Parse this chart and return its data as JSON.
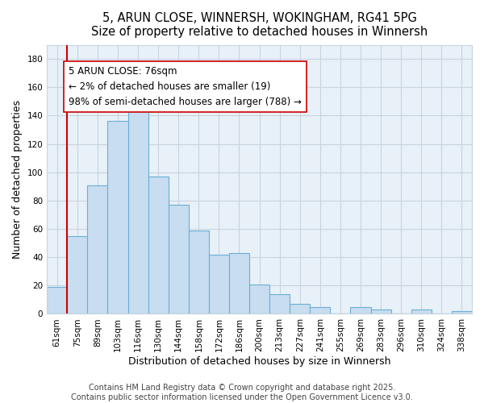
{
  "title": "5, ARUN CLOSE, WINNERSH, WOKINGHAM, RG41 5PG",
  "subtitle": "Size of property relative to detached houses in Winnersh",
  "xlabel": "Distribution of detached houses by size in Winnersh",
  "ylabel": "Number of detached properties",
  "bar_labels": [
    "61sqm",
    "75sqm",
    "89sqm",
    "103sqm",
    "116sqm",
    "130sqm",
    "144sqm",
    "158sqm",
    "172sqm",
    "186sqm",
    "200sqm",
    "213sqm",
    "227sqm",
    "241sqm",
    "255sqm",
    "269sqm",
    "283sqm",
    "296sqm",
    "310sqm",
    "324sqm",
    "338sqm"
  ],
  "bar_values": [
    19,
    55,
    91,
    136,
    143,
    97,
    77,
    59,
    42,
    43,
    21,
    14,
    7,
    5,
    0,
    5,
    3,
    0,
    3,
    0,
    2
  ],
  "bar_color": "#c8ddf0",
  "bar_edge_color": "#6aafd6",
  "vline_x_idx": 1,
  "vline_color": "#cc0000",
  "annotation_text": "5 ARUN CLOSE: 76sqm\n← 2% of detached houses are smaller (19)\n98% of semi-detached houses are larger (788) →",
  "annotation_box_color": "#ffffff",
  "annotation_box_edge": "#cc0000",
  "ylim": [
    0,
    190
  ],
  "yticks": [
    0,
    20,
    40,
    60,
    80,
    100,
    120,
    140,
    160,
    180
  ],
  "footer_line1": "Contains HM Land Registry data © Crown copyright and database right 2025.",
  "footer_line2": "Contains public sector information licensed under the Open Government Licence v3.0.",
  "figure_bg": "#ffffff",
  "plot_bg": "#e8f0f8",
  "grid_color": "#c8d4e0",
  "title_fontsize": 10.5,
  "xlabel_fontsize": 9,
  "ylabel_fontsize": 9,
  "footer_fontsize": 7,
  "annotation_fontsize": 8.5,
  "tick_fontsize": 7.5
}
